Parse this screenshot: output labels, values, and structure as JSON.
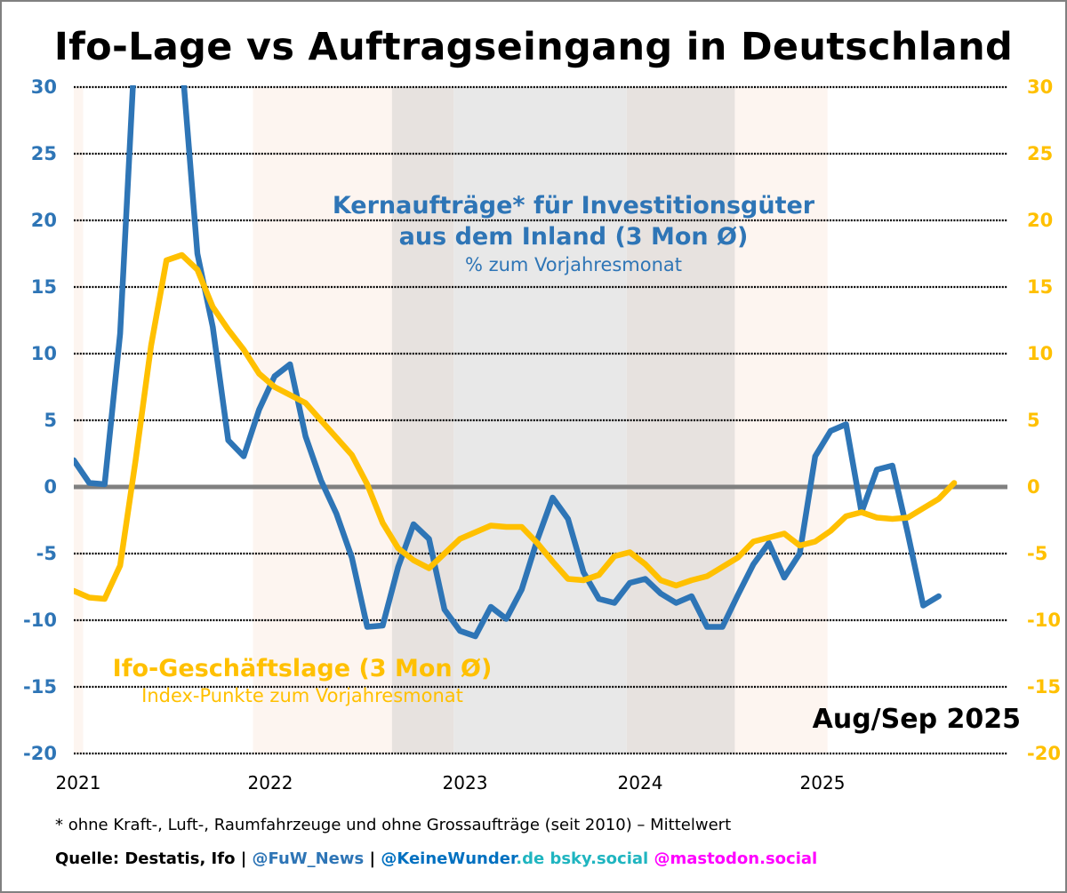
{
  "title": "Ifo-Lage vs Auftragseingang in Deutschland",
  "date_label": "Aug/Sep 2025",
  "annotations": {
    "blue_line1": "Kernaufträge* für Investitionsgüter",
    "blue_line2": "aus dem Inland (3 Mon Ø)",
    "blue_line3": "% zum Vorjahresmonat",
    "yellow_line1": "Ifo-Geschäftslage (3 Mon Ø)",
    "yellow_line2": "Index-Punkte zum Vorjahresmonat"
  },
  "footnote": "* ohne Kraft-, Luft-, Raumfahrzeuge und ohne Grossaufträge (seit 2010) – Mittelwert",
  "source": {
    "prefix": "Quelle: Destatis, Ifo | ",
    "handle1": "@FuW_News",
    "sep": " | ",
    "handle2": "@KeineWunder",
    "handle2_suffix": ".de bsky.social",
    "handle3": " @mastodon.social"
  },
  "colors": {
    "blue": "#2e75b6",
    "yellow": "#ffc000",
    "zero_line": "#808080",
    "band_peach": "#fdf5f0",
    "band_taupe": "#e7e2df",
    "band_grey": "#e8e8e8",
    "teal": "#1fb5c0",
    "magenta": "#ff00ff",
    "link_blue": "#0070c0"
  },
  "chart_data": {
    "type": "line",
    "title": "Ifo-Lage vs Auftragseingang in Deutschland",
    "xlabel": "",
    "ylabel_left": "% zum Vorjahresmonat",
    "ylabel_right": "Index-Punkte zum Vorjahresmonat",
    "ylim": [
      -20,
      30
    ],
    "yticks": [
      30,
      25,
      20,
      15,
      10,
      5,
      0,
      -5,
      -10,
      -15,
      -20
    ],
    "x_start": "2021-01",
    "x_tick_labels": [
      "2021",
      "2022",
      "2023",
      "2024",
      "2025"
    ],
    "grid": "horizontal dotted",
    "bands": [
      {
        "from_month": 0,
        "to_month": 0.6,
        "shade": "peach"
      },
      {
        "from_month": 11.6,
        "to_month": 20.6,
        "shade": "peach"
      },
      {
        "from_month": 20.6,
        "to_month": 24.6,
        "shade": "taupe"
      },
      {
        "from_month": 24.6,
        "to_month": 35.8,
        "shade": "grey"
      },
      {
        "from_month": 35.8,
        "to_month": 42.8,
        "shade": "taupe"
      },
      {
        "from_month": 42.8,
        "to_month": 48.8,
        "shade": "peach"
      }
    ],
    "series": [
      {
        "name": "Kernaufträge* für Investitionsgüter aus dem Inland (3 Mon Ø)",
        "axis": "left",
        "color": "blue",
        "values": [
          2.0,
          0.3,
          0.2,
          11.5,
          34,
          40,
          38,
          32,
          17.5,
          12,
          3.5,
          2.3,
          5.8,
          8.3,
          9.2,
          3.8,
          0.5,
          -2.0,
          -5.3,
          -10.5,
          -10.4,
          -6.0,
          -2.8,
          -3.9,
          -9.2,
          -10.8,
          -11.2,
          -9.0,
          -9.9,
          -7.7,
          -4.0,
          -0.8,
          -2.4,
          -6.4,
          -8.4,
          -8.7,
          -7.2,
          -6.9,
          -8.0,
          -8.7,
          -8.2,
          -10.5,
          -10.5,
          -8.1,
          -5.8,
          -4.2,
          -6.8,
          -5.0,
          2.3,
          4.2,
          4.7,
          -1.9,
          1.3,
          1.6,
          -3.5,
          -8.9,
          -8.2
        ]
      },
      {
        "name": "Ifo-Geschäftslage (3 Mon Ø)",
        "axis": "right",
        "color": "yellow",
        "values": [
          -7.8,
          -8.3,
          -8.4,
          -5.9,
          2.0,
          10.6,
          17.0,
          17.4,
          16.3,
          13.5,
          11.8,
          10.3,
          8.5,
          7.5,
          6.9,
          6.3,
          5.0,
          3.7,
          2.4,
          0.2,
          -2.7,
          -4.6,
          -5.5,
          -6.1,
          -5.0,
          -3.9,
          -3.4,
          -2.9,
          -3.0,
          -3.0,
          -4.2,
          -5.6,
          -6.9,
          -7.0,
          -6.6,
          -5.2,
          -4.9,
          -5.8,
          -7.0,
          -7.4,
          -7.0,
          -6.7,
          -6.0,
          -5.3,
          -4.1,
          -3.8,
          -3.5,
          -4.4,
          -4.1,
          -3.3,
          -2.2,
          -1.9,
          -2.3,
          -2.4,
          -2.3,
          -1.6,
          -0.9,
          0.3
        ]
      }
    ]
  }
}
